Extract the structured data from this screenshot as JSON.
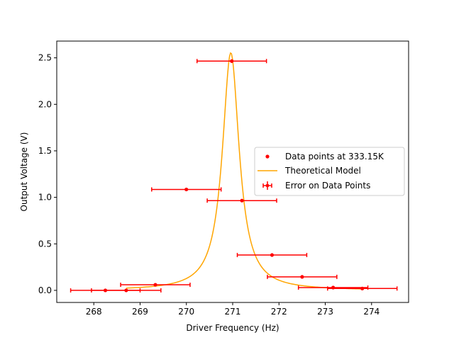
{
  "chart_data": {
    "type": "scatter",
    "xlabel": "Driver Frequency (Hz)",
    "ylabel": "Output Voltage (V)",
    "xlim": [
      267.2,
      274.8
    ],
    "ylim": [
      -0.13,
      2.68
    ],
    "xticks": [
      268,
      269,
      270,
      271,
      272,
      273,
      274
    ],
    "yticks": [
      0.0,
      0.5,
      1.0,
      1.5,
      2.0,
      2.5
    ],
    "xtick_labels": [
      "268",
      "269",
      "270",
      "271",
      "272",
      "273",
      "274"
    ],
    "ytick_labels": [
      "0.0",
      "0.5",
      "1.0",
      "1.5",
      "2.0",
      "2.5"
    ],
    "grid": false,
    "legend_position": "center-right",
    "colors": {
      "data": "#ff0000",
      "model": "#ffa500",
      "errors": "#ff0000"
    },
    "series": [
      {
        "name": "Data points at 333.15K",
        "kind": "points",
        "points": [
          {
            "x": 268.25,
            "y": 0.0,
            "xerr": 0.75
          },
          {
            "x": 268.7,
            "y": 0.0,
            "xerr": 0.75
          },
          {
            "x": 269.33,
            "y": 0.06,
            "xerr": 0.75
          },
          {
            "x": 270.0,
            "y": 1.085,
            "xerr": 0.75
          },
          {
            "x": 270.98,
            "y": 2.465,
            "xerr": 0.75
          },
          {
            "x": 271.2,
            "y": 0.965,
            "xerr": 0.75
          },
          {
            "x": 271.85,
            "y": 0.38,
            "xerr": 0.75
          },
          {
            "x": 272.5,
            "y": 0.145,
            "xerr": 0.75
          },
          {
            "x": 273.17,
            "y": 0.03,
            "xerr": 0.75
          },
          {
            "x": 273.8,
            "y": 0.02,
            "xerr": 0.75
          }
        ]
      },
      {
        "name": "Theoretical Model",
        "kind": "curve",
        "peak_x": 270.96,
        "peak_y": 2.555,
        "half_width": 0.22,
        "x_range": [
          268.7,
          273.8
        ]
      },
      {
        "name": "Error on Data Points",
        "kind": "errorbar"
      }
    ]
  }
}
